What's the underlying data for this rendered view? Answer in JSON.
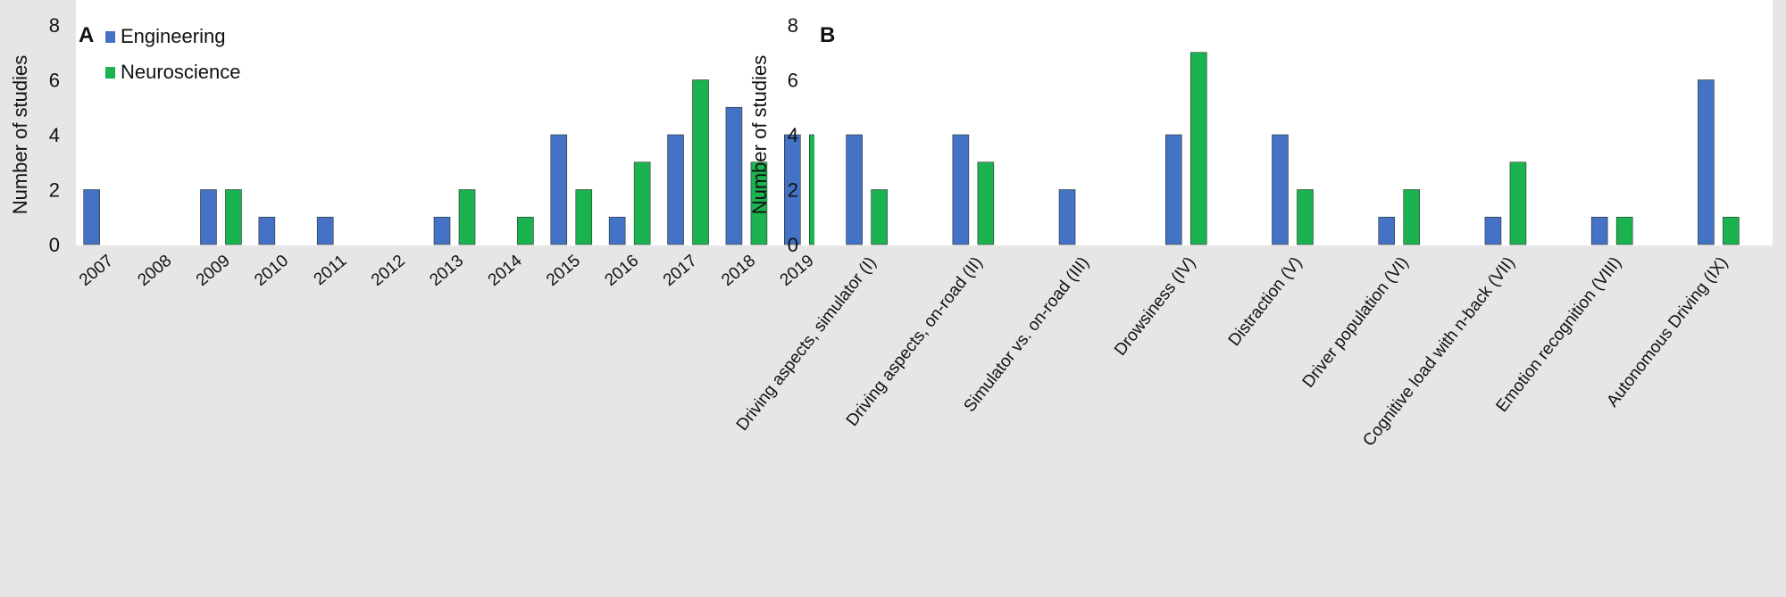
{
  "chart_data": [
    {
      "type": "bar",
      "panel_label": "A",
      "title": "",
      "xlabel": "",
      "ylabel": "Number of studies",
      "ylim": [
        0,
        8
      ],
      "yticks": [
        0,
        2,
        4,
        6,
        8
      ],
      "grid": false,
      "legend_position": "top-left",
      "categories": [
        "2007",
        "2008",
        "2009",
        "2010",
        "2011",
        "2012",
        "2013",
        "2014",
        "2015",
        "2016",
        "2017",
        "2018",
        "2019"
      ],
      "series": [
        {
          "name": "Engineering",
          "color": "#4472c4",
          "values": [
            2,
            0,
            2,
            1,
            1,
            0,
            1,
            0,
            4,
            1,
            4,
            5,
            4
          ]
        },
        {
          "name": "Neuroscience",
          "color": "#1ab34f",
          "values": [
            0,
            0,
            2,
            0,
            0,
            0,
            2,
            1,
            2,
            3,
            6,
            3,
            4
          ]
        }
      ]
    },
    {
      "type": "bar",
      "panel_label": "B",
      "title": "",
      "xlabel": "",
      "ylabel": "Number of studies",
      "ylim": [
        0,
        8
      ],
      "yticks": [
        0,
        2,
        4,
        6,
        8
      ],
      "grid": false,
      "legend_position": "none",
      "categories": [
        "Driving aspects, simulator (I)",
        "Driving aspects, on-road (II)",
        "Simulator vs. on-road (III)",
        "Drowsiness (IV)",
        "Distraction (V)",
        "Driver population (VI)",
        "Cognitive load with n-back (VII)",
        "Emotion recognition (VIII)",
        "Autonomous Driving (IX)"
      ],
      "series": [
        {
          "name": "Engineering",
          "color": "#4472c4",
          "values": [
            4,
            4,
            2,
            4,
            4,
            1,
            1,
            1,
            6
          ]
        },
        {
          "name": "Neuroscience",
          "color": "#1ab34f",
          "values": [
            2,
            3,
            0,
            7,
            2,
            2,
            3,
            1,
            1
          ]
        }
      ]
    }
  ]
}
